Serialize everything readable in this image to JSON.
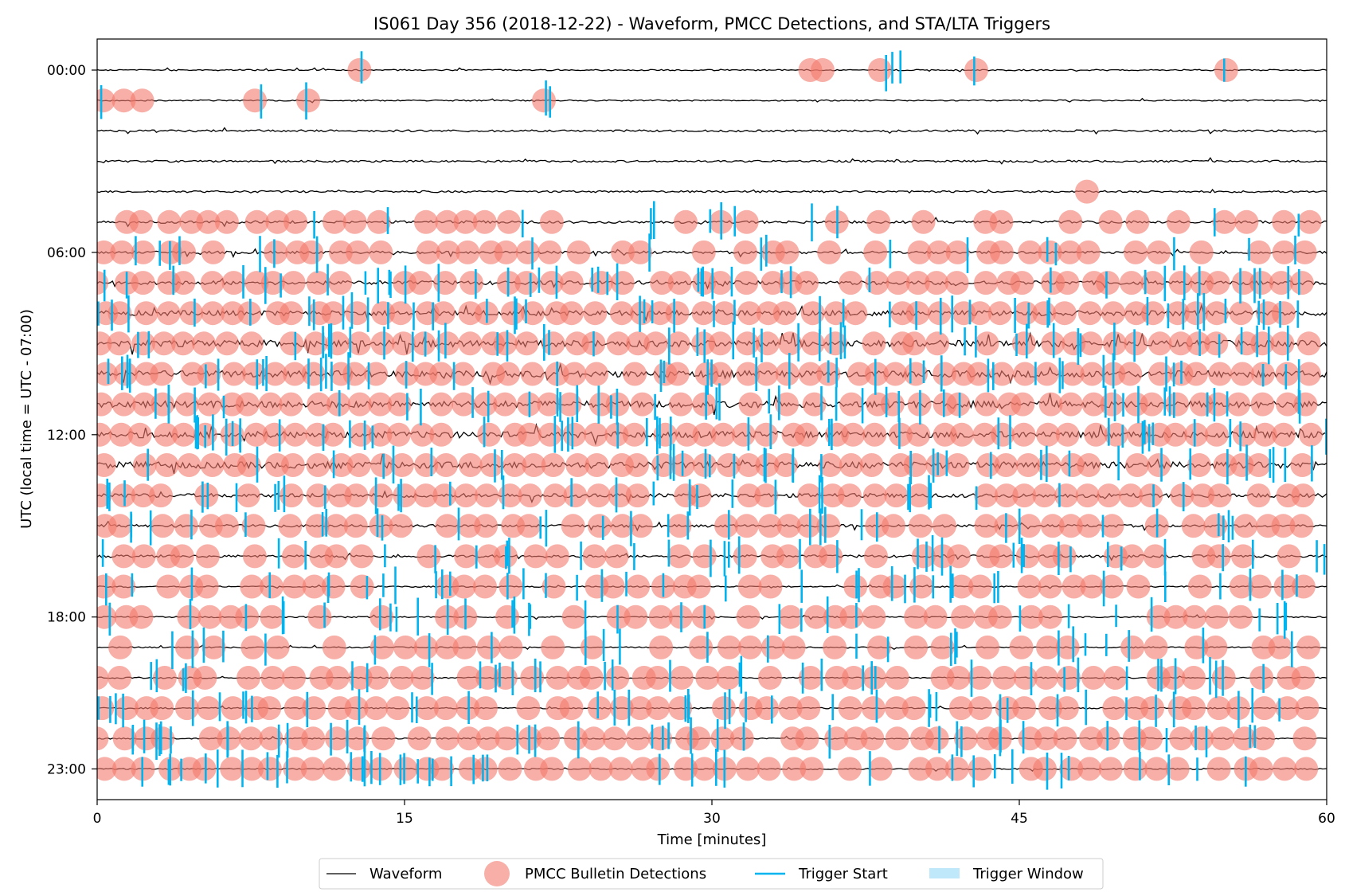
{
  "chart_data": {
    "type": "scatter",
    "title": "IS061 Day 356 (2018-12-22) - Waveform, PMCC Detections, and STA/LTA Triggers",
    "xlabel": "Time [minutes]",
    "ylabel": "UTC (local time = UTC - 07:00)",
    "xlim": [
      0,
      60
    ],
    "x_ticks": [
      0,
      15,
      30,
      45,
      60
    ],
    "x_tick_labels": [
      "0",
      "15",
      "30",
      "45",
      "60"
    ],
    "y_ticks": [
      0,
      6,
      12,
      18,
      23
    ],
    "y_tick_labels": [
      "00:00",
      "06:00",
      "12:00",
      "18:00",
      "23:00"
    ],
    "hours": [
      0,
      1,
      2,
      3,
      4,
      5,
      6,
      7,
      8,
      9,
      10,
      11,
      12,
      13,
      14,
      15,
      16,
      17,
      18,
      19,
      20,
      21,
      22,
      23
    ],
    "detection_density": [
      0.12,
      0.16,
      0,
      0,
      0.02,
      0.55,
      0.7,
      0.97,
      0.96,
      0.96,
      0.96,
      0.95,
      0.95,
      0.85,
      0.85,
      0.78,
      0.82,
      0.8,
      0.78,
      0.65,
      0.8,
      0.9,
      0.9,
      0.92
    ],
    "trigger_density": [
      0.04,
      0.04,
      0,
      0,
      0,
      0.25,
      0.4,
      0.9,
      0.95,
      0.95,
      0.95,
      0.95,
      0.92,
      0.8,
      0.7,
      0.65,
      0.75,
      0.8,
      0.7,
      0.55,
      0.75,
      0.85,
      0.85,
      0.88
    ],
    "waveform_noise_level": [
      1,
      1,
      1.5,
      1.5,
      1.5,
      2,
      2,
      3,
      4,
      5,
      5,
      5,
      5,
      5,
      3,
      2,
      2,
      1,
      1,
      1,
      1,
      1,
      1,
      1
    ],
    "detections_hour0_minutes": [
      12.8,
      34.8,
      35.4,
      38.2,
      42.9,
      55.1
    ],
    "detections_hour1_minutes": [
      0.3,
      1.3,
      2.2,
      7.7,
      10.3,
      21.8
    ],
    "detections_hour4_minutes": [
      48.3
    ],
    "triggers_hour0_minutes": [
      12.9,
      38.5,
      38.8,
      39.2,
      42.8,
      55.0
    ],
    "triggers_hour1_minutes": [
      0.2,
      8.0,
      10.2,
      21.9,
      22.1
    ],
    "legend": [
      "Waveform",
      "PMCC Bulletin Detections",
      "Trigger Start",
      "Trigger Window"
    ],
    "legend_position": "bottom-center",
    "colors": {
      "waveform": "#000000",
      "detection": "#f3796c",
      "trigger_start": "#00b4f0",
      "trigger_window": "#bfe8fb"
    }
  }
}
